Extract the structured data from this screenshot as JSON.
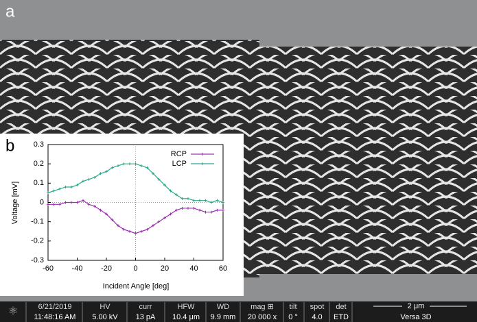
{
  "panel_labels": [
    "a",
    "b"
  ],
  "chart_data": {
    "type": "line",
    "xlabel": "Incident Angle [deg]",
    "ylabel": "Voltage [mV]",
    "x": [
      -60,
      -56,
      -52,
      -48,
      -44,
      -40,
      -36,
      -32,
      -28,
      -24,
      -20,
      -16,
      -12,
      -8,
      -4,
      0,
      4,
      8,
      12,
      16,
      20,
      24,
      28,
      32,
      36,
      40,
      44,
      48,
      52,
      56,
      60
    ],
    "series": [
      {
        "name": "RCP",
        "color": "#9b30b0",
        "values": [
          -0.01,
          -0.01,
          -0.01,
          0.0,
          0.0,
          0.0,
          0.01,
          -0.01,
          -0.02,
          -0.04,
          -0.06,
          -0.09,
          -0.12,
          -0.14,
          -0.15,
          -0.16,
          -0.15,
          -0.14,
          -0.12,
          -0.1,
          -0.08,
          -0.06,
          -0.04,
          -0.03,
          -0.03,
          -0.03,
          -0.04,
          -0.05,
          -0.05,
          -0.04,
          -0.04
        ]
      },
      {
        "name": "LCP",
        "color": "#2aa98a",
        "values": [
          0.05,
          0.06,
          0.07,
          0.08,
          0.08,
          0.09,
          0.11,
          0.12,
          0.13,
          0.15,
          0.16,
          0.18,
          0.19,
          0.2,
          0.2,
          0.2,
          0.19,
          0.18,
          0.15,
          0.12,
          0.09,
          0.06,
          0.04,
          0.02,
          0.02,
          0.01,
          0.01,
          0.01,
          0.0,
          0.01,
          0.0
        ]
      }
    ],
    "xlim": [
      -60,
      60
    ],
    "xticks": [
      -60,
      -40,
      -20,
      0,
      20,
      40,
      60
    ],
    "ylim": [
      -0.3,
      0.3
    ],
    "yticks": [
      -0.3,
      -0.2,
      -0.1,
      0,
      0.1,
      0.2,
      0.3
    ],
    "zero_lines": true,
    "legend": "upper right"
  },
  "info_bar": {
    "columns": [
      {
        "label": "6/21/2019",
        "value": "11:48:16 AM"
      },
      {
        "label": "HV",
        "value": "5.00 kV"
      },
      {
        "label": "curr",
        "value": "13 pA"
      },
      {
        "label": "HFW",
        "value": "10.4 μm"
      },
      {
        "label": "WD",
        "value": "9.9 mm"
      },
      {
        "label": "mag ⊞",
        "value": "20 000 x"
      },
      {
        "label": "tilt",
        "value": "0 °"
      },
      {
        "label": "spot",
        "value": "4.0"
      },
      {
        "label": "det",
        "value": "ETD"
      }
    ],
    "scale_bar": "2 μm",
    "instrument": "Versa 3D"
  }
}
